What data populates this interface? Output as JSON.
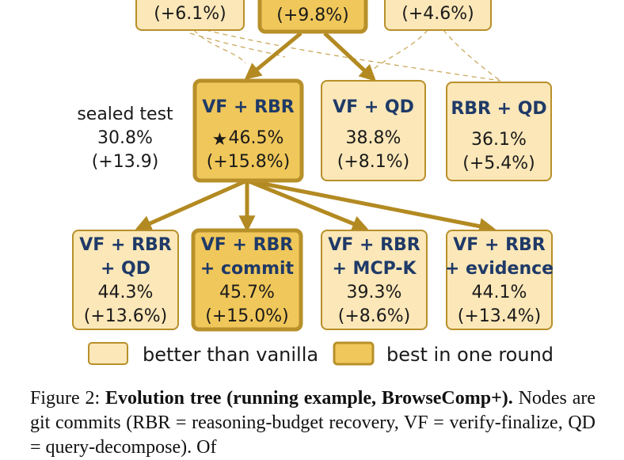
{
  "colors": {
    "better_fill": "#fbe7b8",
    "best_fill": "#f0c75a",
    "border": "#b8902a",
    "edge": "#b38a22",
    "dashed": "#c9a85a",
    "title_text": "#1f3a68"
  },
  "side_note": {
    "label": "sealed test",
    "value": "30.8%",
    "delta": "(+13.9)"
  },
  "top_row": [
    {
      "id": "t1",
      "kind": "better",
      "lines": [
        "(+6.1%)"
      ]
    },
    {
      "id": "t2",
      "kind": "best",
      "lines": [
        "(+9.8%)"
      ]
    },
    {
      "id": "t3",
      "kind": "better",
      "lines": [
        "(+4.6%)"
      ]
    }
  ],
  "middle_row": [
    {
      "id": "m1",
      "kind": "best",
      "title": [
        "VF + RBR"
      ],
      "star": "★",
      "value": "46.5%",
      "delta": "(+15.8%)"
    },
    {
      "id": "m2",
      "kind": "better",
      "title": [
        "VF + QD"
      ],
      "value": "38.8%",
      "delta": "(+8.1%)"
    },
    {
      "id": "m3",
      "kind": "better",
      "title": [
        "RBR + QD"
      ],
      "value": "36.1%",
      "delta": "(+5.4%)"
    }
  ],
  "bottom_row": [
    {
      "id": "b1",
      "kind": "better",
      "title": [
        "VF + RBR",
        "+ QD"
      ],
      "value": "44.3%",
      "delta": "(+13.6%)"
    },
    {
      "id": "b2",
      "kind": "best",
      "title": [
        "VF + RBR",
        "+ commit"
      ],
      "value": "45.7%",
      "delta": "(+15.0%)"
    },
    {
      "id": "b3",
      "kind": "better",
      "title": [
        "VF + RBR",
        "+ MCP-K"
      ],
      "value": "39.3%",
      "delta": "(+8.6%)"
    },
    {
      "id": "b4",
      "kind": "better",
      "title": [
        "VF + RBR",
        "+ evidence"
      ],
      "value": "44.1%",
      "delta": "(+13.4%)"
    }
  ],
  "edges": [
    {
      "from": "t2",
      "to": "m1",
      "style": "solid"
    },
    {
      "from": "t2",
      "to": "m2",
      "style": "solid"
    },
    {
      "from": "m1",
      "to": "b1",
      "style": "solid"
    },
    {
      "from": "m1",
      "to": "b2",
      "style": "solid"
    },
    {
      "from": "m1",
      "to": "b3",
      "style": "solid"
    },
    {
      "from": "m1",
      "to": "b4",
      "style": "solid"
    }
  ],
  "legend": {
    "better_label": "better than vanilla",
    "best_label": "best in one round"
  },
  "caption": {
    "figure_label": "Figure 2:",
    "bold_title": "Evolution tree (running example, BrowseComp+).",
    "text": "Nodes are git commits (RBR = reasoning-budget recovery, VF = verify-finalize, QD = query-decompose). Of"
  }
}
